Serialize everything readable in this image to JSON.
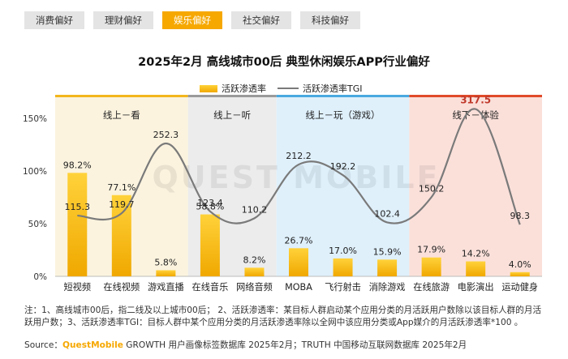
{
  "tabs": [
    {
      "label": "消费偏好",
      "active": false
    },
    {
      "label": "理财偏好",
      "active": false
    },
    {
      "label": "娱乐偏好",
      "active": true
    },
    {
      "label": "社交偏好",
      "active": false
    },
    {
      "label": "科技偏好",
      "active": false
    }
  ],
  "colors": {
    "accent": "#f6a800",
    "bar_top": "#ffd23a",
    "bar_bottom": "#f0a800",
    "line": "#7a7a7a",
    "tgi_highlight": "#c0392b",
    "group_online_watch_bg": "#fbf3de",
    "group_online_watch_top": "#f2b61c",
    "group_online_listen_bg": "#ececec",
    "group_online_listen_top": "#9a9a9a",
    "group_online_play_bg": "#dff0fb",
    "group_online_play_top": "#4aa9e0",
    "group_offline_bg": "#fbe0da",
    "group_offline_top": "#e04a2a"
  },
  "watermark": "QUEST MOBILE",
  "notes": "注：1、高线城市00后，指二线及以上城市00后； 2、活跃渗透率：某目标人群启动某个应用分类的月活跃用户数除以该目标人群的月活跃用户数；3、活跃渗透率TGI：目标人群中某个应用分类的月活跃渗透率除以全网中该应用分类或App媒介的月活跃渗透率*100 。",
  "source": {
    "prefix": "Source：",
    "brand": "QuestMobile",
    "text": " GROWTH 用户画像标签数据库 2025年2月；TRUTH 中国移动互联网数据库 2025年2月"
  },
  "chart_data": {
    "type": "bar",
    "title": "2025年2月 高线城市00后 典型休闲娱乐APP行业偏好",
    "legend_position": "top",
    "categories": [
      "短视频",
      "在线视频",
      "游戏直播",
      "在线音乐",
      "网络音频",
      "MOBA",
      "飞行射击",
      "消除游戏",
      "在线旅游",
      "电影演出",
      "运动健身"
    ],
    "y_ticks": [
      "0%",
      "50%",
      "100%",
      "150%"
    ],
    "ylim": [
      0,
      1.7
    ],
    "groups": [
      {
        "label": "线上－看",
        "categories": [
          "短视频",
          "在线视频",
          "游戏直播"
        ]
      },
      {
        "label": "线上－听",
        "categories": [
          "在线音乐",
          "网络音频"
        ]
      },
      {
        "label": "线上－玩（游戏）",
        "categories": [
          "MOBA",
          "飞行射击",
          "消除游戏"
        ]
      },
      {
        "label": "线下－体验",
        "categories": [
          "在线旅游",
          "电影演出",
          "运动健身"
        ]
      }
    ],
    "series": [
      {
        "name": "活跃渗透率",
        "kind": "bar",
        "values": [
          0.982,
          0.771,
          0.058,
          0.588,
          0.082,
          0.267,
          0.17,
          0.159,
          0.179,
          0.142,
          0.04
        ],
        "labels": [
          "98.2%",
          "77.1%",
          "5.8%",
          "58.8%",
          "8.2%",
          "26.7%",
          "17.0%",
          "15.9%",
          "17.9%",
          "14.2%",
          "4.0%"
        ]
      },
      {
        "name": "活跃渗透率TGI",
        "kind": "line",
        "values": [
          115.3,
          119.7,
          252.3,
          123.4,
          110.2,
          212.2,
          192.2,
          102.4,
          150.2,
          317.5,
          98.3
        ],
        "labels": [
          "115.3",
          "119.7",
          "252.3",
          "123.4",
          "110.2",
          "212.2",
          "192.2",
          "102.4",
          "150.2",
          "317.5",
          "98.3"
        ],
        "highlight_index": 9
      }
    ]
  }
}
